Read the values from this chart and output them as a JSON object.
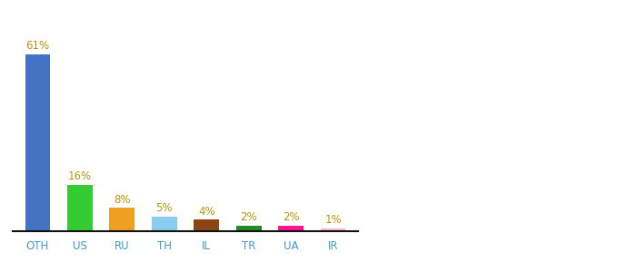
{
  "categories": [
    "OTH",
    "US",
    "RU",
    "TH",
    "IL",
    "TR",
    "UA",
    "IR"
  ],
  "values": [
    61,
    16,
    8,
    5,
    4,
    2,
    2,
    1
  ],
  "bar_colors": [
    "#4472c4",
    "#33cc33",
    "#f0a020",
    "#88ccee",
    "#8b4513",
    "#228b22",
    "#ff1493",
    "#ffb6c1"
  ],
  "label_color": "#b8960c",
  "axis_label_color": "#4499cc",
  "background_color": "#ffffff",
  "ylim": [
    0,
    75
  ],
  "bar_width": 0.6,
  "figsize": [
    6.8,
    3.0
  ],
  "dpi": 100
}
